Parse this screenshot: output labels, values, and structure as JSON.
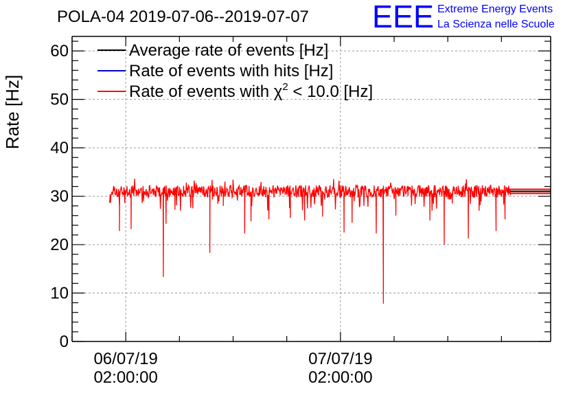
{
  "chart_data": {
    "type": "line",
    "title": "POLA-04 2019-07-06--2019-07-07",
    "ylabel": "Rate [Hz]",
    "xlabel": "",
    "ylim": [
      0,
      63
    ],
    "yticks": [
      0,
      10,
      20,
      30,
      40,
      50,
      60
    ],
    "ytick_labels": [
      "0",
      "10",
      "20",
      "30",
      "40",
      "50",
      "60"
    ],
    "xlim_hours": [
      0,
      53.5
    ],
    "xticks_hours": [
      6,
      30
    ],
    "xminor_hours": [
      0,
      6,
      12,
      18,
      24,
      30,
      36,
      42,
      48
    ],
    "xtick_labels": [
      {
        "date": "06/07/19",
        "time": "02:00:00"
      },
      {
        "date": "07/07/19",
        "time": "02:00:00"
      }
    ],
    "grid": true,
    "legend": [
      {
        "label": "Average rate of events [Hz]",
        "color": "#000000"
      },
      {
        "label": "Rate of events with hits [Hz]",
        "color": "#0000cc"
      },
      {
        "label_pre": "Rate of events with ",
        "chi": "χ",
        "sup": "2",
        "label_post": " < 10.0 [Hz]",
        "color": "#ff0000"
      }
    ],
    "series": [
      {
        "name": "Rate of events with χ2 < 10.0 [Hz]",
        "color": "#ff0000",
        "x_start_hours": 4.2,
        "x_end_hours": 49.0,
        "baseline": 31.0,
        "noise": 0.8,
        "dips": [
          {
            "x": 5.3,
            "y": 22.8
          },
          {
            "x": 6.6,
            "y": 23.2
          },
          {
            "x": 8.0,
            "y": 29.0
          },
          {
            "x": 10.2,
            "y": 13.3
          },
          {
            "x": 10.5,
            "y": 24.3
          },
          {
            "x": 11.5,
            "y": 27.2
          },
          {
            "x": 13.5,
            "y": 27.5
          },
          {
            "x": 15.4,
            "y": 18.3
          },
          {
            "x": 16.9,
            "y": 28.0
          },
          {
            "x": 19.3,
            "y": 22.3
          },
          {
            "x": 20.0,
            "y": 24.8
          },
          {
            "x": 22.0,
            "y": 25.2
          },
          {
            "x": 24.4,
            "y": 25.5
          },
          {
            "x": 26.0,
            "y": 25.0
          },
          {
            "x": 28.0,
            "y": 25.8
          },
          {
            "x": 30.4,
            "y": 22.5
          },
          {
            "x": 31.3,
            "y": 24.5
          },
          {
            "x": 34.0,
            "y": 22.3
          },
          {
            "x": 34.8,
            "y": 7.8
          },
          {
            "x": 36.2,
            "y": 26.0
          },
          {
            "x": 40.0,
            "y": 25.0
          },
          {
            "x": 41.6,
            "y": 20.0
          },
          {
            "x": 42.5,
            "y": 28.5
          },
          {
            "x": 44.3,
            "y": 21.3
          },
          {
            "x": 45.5,
            "y": 27.0
          },
          {
            "x": 47.4,
            "y": 22.8
          },
          {
            "x": 48.4,
            "y": 25.2
          }
        ]
      },
      {
        "name": "Average rate of events [Hz]",
        "color": "#000000",
        "x_start_hours": 49.0,
        "x_end_hours": 53.5,
        "values": [
          31.0,
          31.0
        ]
      }
    ]
  },
  "logo": {
    "letters": "EEE",
    "line1": "Extreme Energy Events",
    "line2": "La Scienza nelle Scuole",
    "color": "#0000ff"
  }
}
